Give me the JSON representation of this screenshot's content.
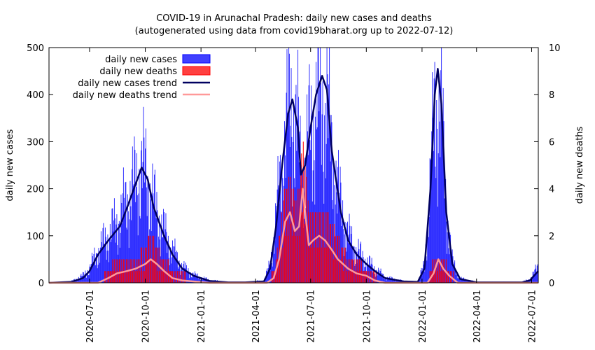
{
  "chart_data": {
    "type": "bar",
    "title": "COVID-19 in Arunachal Pradesh: daily new cases and deaths",
    "subtitle": "(autogenerated using data from covid19bharat.org up to 2022-07-12)",
    "ylabel": "daily new cases",
    "y2label": "daily new deaths",
    "xlim": [
      "2020-04-25",
      "2022-07-12"
    ],
    "ylim": [
      0,
      500
    ],
    "y2lim": [
      0,
      10
    ],
    "yticks": [
      0,
      100,
      200,
      300,
      400,
      500
    ],
    "y2ticks": [
      0,
      2,
      4,
      6,
      8,
      10
    ],
    "xticks": [
      "2020-07-01",
      "2020-10-01",
      "2021-01-01",
      "2021-04-01",
      "2021-07-01",
      "2021-10-01",
      "2022-01-01",
      "2022-04-01",
      "2022-07-01"
    ],
    "legend_position": "top-left",
    "series": [
      {
        "name": "daily new cases",
        "kind": "bar",
        "axis": "y",
        "color": "#0000ff"
      },
      {
        "name": "daily new deaths",
        "kind": "bar",
        "axis": "y2",
        "color": "#ff0000"
      },
      {
        "name": "daily new cases trend",
        "kind": "line",
        "axis": "y",
        "color": "#000060"
      },
      {
        "name": "daily new deaths trend",
        "kind": "line",
        "axis": "y2",
        "color": "#ff9999"
      }
    ],
    "cases_trend_points": [
      [
        "2020-04-25",
        0
      ],
      [
        "2020-06-01",
        2
      ],
      [
        "2020-06-20",
        10
      ],
      [
        "2020-07-01",
        25
      ],
      [
        "2020-07-15",
        60
      ],
      [
        "2020-08-01",
        90
      ],
      [
        "2020-08-20",
        120
      ],
      [
        "2020-09-01",
        160
      ],
      [
        "2020-09-15",
        210
      ],
      [
        "2020-09-25",
        245
      ],
      [
        "2020-10-05",
        220
      ],
      [
        "2020-10-15",
        160
      ],
      [
        "2020-11-01",
        100
      ],
      [
        "2020-11-15",
        60
      ],
      [
        "2020-12-01",
        30
      ],
      [
        "2020-12-20",
        15
      ],
      [
        "2021-01-15",
        4
      ],
      [
        "2021-02-15",
        1
      ],
      [
        "2021-03-15",
        1
      ],
      [
        "2021-04-15",
        3
      ],
      [
        "2021-04-25",
        30
      ],
      [
        "2021-05-05",
        120
      ],
      [
        "2021-05-15",
        250
      ],
      [
        "2021-05-25",
        360
      ],
      [
        "2021-06-01",
        390
      ],
      [
        "2021-06-10",
        330
      ],
      [
        "2021-06-15",
        230
      ],
      [
        "2021-06-22",
        250
      ],
      [
        "2021-07-01",
        330
      ],
      [
        "2021-07-10",
        400
      ],
      [
        "2021-07-20",
        440
      ],
      [
        "2021-07-28",
        410
      ],
      [
        "2021-08-05",
        280
      ],
      [
        "2021-08-20",
        150
      ],
      [
        "2021-09-01",
        90
      ],
      [
        "2021-09-15",
        60
      ],
      [
        "2021-10-01",
        40
      ],
      [
        "2021-10-15",
        25
      ],
      [
        "2021-11-01",
        10
      ],
      [
        "2021-12-01",
        3
      ],
      [
        "2021-12-25",
        2
      ],
      [
        "2022-01-05",
        30
      ],
      [
        "2022-01-15",
        200
      ],
      [
        "2022-01-22",
        400
      ],
      [
        "2022-01-27",
        455
      ],
      [
        "2022-02-02",
        380
      ],
      [
        "2022-02-10",
        150
      ],
      [
        "2022-02-20",
        40
      ],
      [
        "2022-03-05",
        8
      ],
      [
        "2022-04-01",
        1
      ],
      [
        "2022-06-15",
        1
      ],
      [
        "2022-06-28",
        5
      ],
      [
        "2022-07-12",
        25
      ]
    ],
    "deaths_trend_points": [
      [
        "2020-04-25",
        0
      ],
      [
        "2020-07-15",
        0
      ],
      [
        "2020-08-01",
        0.2
      ],
      [
        "2020-08-15",
        0.4
      ],
      [
        "2020-09-01",
        0.5
      ],
      [
        "2020-09-15",
        0.6
      ],
      [
        "2020-10-01",
        0.8
      ],
      [
        "2020-10-10",
        1.0
      ],
      [
        "2020-10-20",
        0.8
      ],
      [
        "2020-11-01",
        0.5
      ],
      [
        "2020-11-15",
        0.2
      ],
      [
        "2020-12-01",
        0.1
      ],
      [
        "2021-01-15",
        0
      ],
      [
        "2021-04-20",
        0
      ],
      [
        "2021-05-01",
        0.2
      ],
      [
        "2021-05-10",
        1.0
      ],
      [
        "2021-05-20",
        2.6
      ],
      [
        "2021-05-28",
        3.0
      ],
      [
        "2021-06-05",
        2.2
      ],
      [
        "2021-06-12",
        2.4
      ],
      [
        "2021-06-18",
        4.0
      ],
      [
        "2021-06-22",
        3.0
      ],
      [
        "2021-06-28",
        1.6
      ],
      [
        "2021-07-05",
        1.8
      ],
      [
        "2021-07-15",
        2.0
      ],
      [
        "2021-07-25",
        1.8
      ],
      [
        "2021-08-05",
        1.4
      ],
      [
        "2021-08-15",
        1.0
      ],
      [
        "2021-09-01",
        0.6
      ],
      [
        "2021-09-15",
        0.4
      ],
      [
        "2021-10-01",
        0.3
      ],
      [
        "2021-10-15",
        0.1
      ],
      [
        "2021-11-01",
        0
      ],
      [
        "2022-01-10",
        0
      ],
      [
        "2022-01-20",
        0.4
      ],
      [
        "2022-01-28",
        1.0
      ],
      [
        "2022-02-05",
        0.6
      ],
      [
        "2022-02-15",
        0.3
      ],
      [
        "2022-03-01",
        0
      ],
      [
        "2022-07-12",
        0
      ]
    ],
    "cases_bar_envelope": [
      [
        "2020-04-25",
        0
      ],
      [
        "2020-06-01",
        4
      ],
      [
        "2020-06-20",
        20
      ],
      [
        "2020-07-01",
        40
      ],
      [
        "2020-07-15",
        90
      ],
      [
        "2020-08-01",
        130
      ],
      [
        "2020-08-20",
        180
      ],
      [
        "2020-09-01",
        230
      ],
      [
        "2020-09-15",
        280
      ],
      [
        "2020-09-25",
        330
      ],
      [
        "2020-10-05",
        290
      ],
      [
        "2020-10-15",
        220
      ],
      [
        "2020-11-01",
        140
      ],
      [
        "2020-11-15",
        90
      ],
      [
        "2020-12-01",
        45
      ],
      [
        "2020-12-20",
        22
      ],
      [
        "2021-01-15",
        7
      ],
      [
        "2021-02-15",
        2
      ],
      [
        "2021-03-15",
        2
      ],
      [
        "2021-04-15",
        6
      ],
      [
        "2021-04-25",
        50
      ],
      [
        "2021-05-05",
        180
      ],
      [
        "2021-05-15",
        330
      ],
      [
        "2021-05-25",
        470
      ],
      [
        "2021-06-01",
        500
      ],
      [
        "2021-06-10",
        420
      ],
      [
        "2021-06-15",
        310
      ],
      [
        "2021-06-22",
        330
      ],
      [
        "2021-07-01",
        430
      ],
      [
        "2021-07-10",
        500
      ],
      [
        "2021-07-20",
        500
      ],
      [
        "2021-07-28",
        500
      ],
      [
        "2021-08-05",
        360
      ],
      [
        "2021-08-20",
        210
      ],
      [
        "2021-09-01",
        130
      ],
      [
        "2021-09-15",
        90
      ],
      [
        "2021-10-01",
        60
      ],
      [
        "2021-10-15",
        40
      ],
      [
        "2021-11-01",
        15
      ],
      [
        "2021-12-01",
        5
      ],
      [
        "2021-12-25",
        3
      ],
      [
        "2022-01-05",
        50
      ],
      [
        "2022-01-15",
        280
      ],
      [
        "2022-01-22",
        500
      ],
      [
        "2022-01-27",
        500
      ],
      [
        "2022-02-02",
        470
      ],
      [
        "2022-02-10",
        210
      ],
      [
        "2022-02-20",
        60
      ],
      [
        "2022-03-05",
        12
      ],
      [
        "2022-04-01",
        2
      ],
      [
        "2022-06-15",
        2
      ],
      [
        "2022-06-28",
        10
      ],
      [
        "2022-07-12",
        45
      ]
    ],
    "deaths_bar_envelope": [
      [
        "2020-04-25",
        0
      ],
      [
        "2020-07-15",
        0
      ],
      [
        "2020-08-01",
        0.5
      ],
      [
        "2020-08-15",
        1.0
      ],
      [
        "2020-09-01",
        1.0
      ],
      [
        "2020-09-15",
        1.0
      ],
      [
        "2020-10-01",
        1.5
      ],
      [
        "2020-10-10",
        2.0
      ],
      [
        "2020-10-20",
        1.5
      ],
      [
        "2020-11-01",
        1.0
      ],
      [
        "2020-11-15",
        0.5
      ],
      [
        "2020-12-01",
        0.3
      ],
      [
        "2021-01-15",
        0
      ],
      [
        "2021-04-20",
        0
      ],
      [
        "2021-05-01",
        0.5
      ],
      [
        "2021-05-10",
        2.0
      ],
      [
        "2021-05-20",
        4.0
      ],
      [
        "2021-05-28",
        4.5
      ],
      [
        "2021-06-05",
        3.5
      ],
      [
        "2021-06-12",
        4.0
      ],
      [
        "2021-06-18",
        6.0
      ],
      [
        "2021-06-22",
        5.0
      ],
      [
        "2021-06-28",
        3.0
      ],
      [
        "2021-07-05",
        3.0
      ],
      [
        "2021-07-15",
        3.0
      ],
      [
        "2021-07-25",
        3.0
      ],
      [
        "2021-08-05",
        2.5
      ],
      [
        "2021-08-15",
        2.0
      ],
      [
        "2021-09-01",
        1.0
      ],
      [
        "2021-09-15",
        1.0
      ],
      [
        "2021-10-01",
        0.5
      ],
      [
        "2021-10-15",
        0.3
      ],
      [
        "2021-11-01",
        0
      ],
      [
        "2022-01-10",
        0
      ],
      [
        "2022-01-20",
        1.0
      ],
      [
        "2022-01-28",
        1.0
      ],
      [
        "2022-02-05",
        1.0
      ],
      [
        "2022-02-15",
        0.5
      ],
      [
        "2022-03-01",
        0
      ],
      [
        "2022-07-12",
        0
      ]
    ]
  }
}
